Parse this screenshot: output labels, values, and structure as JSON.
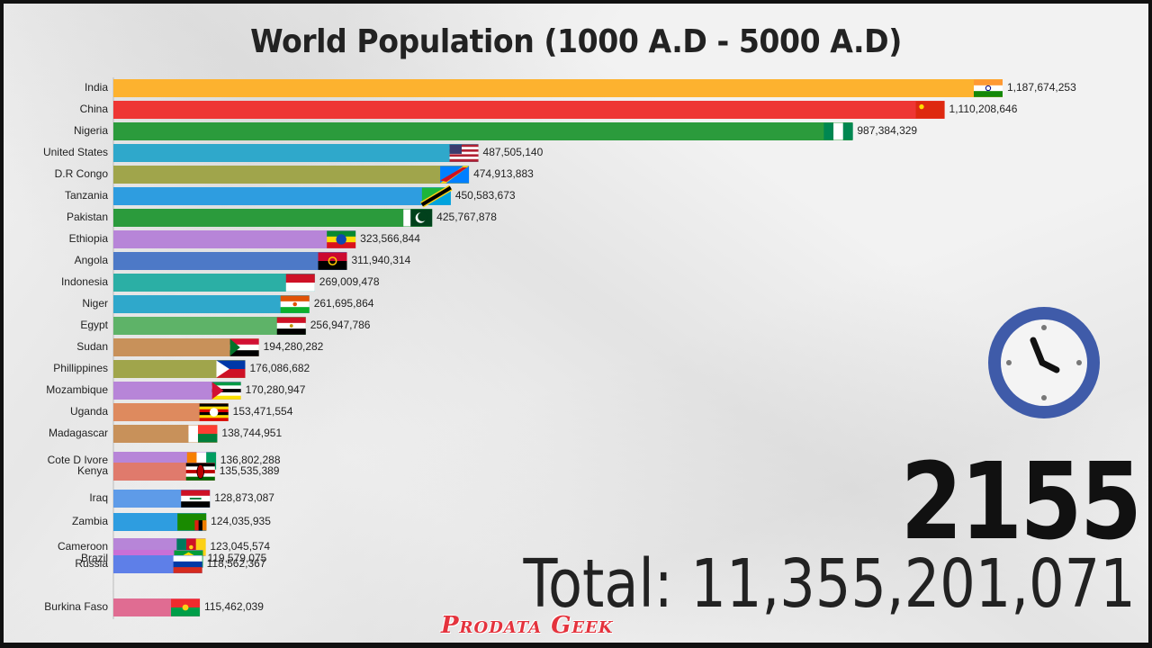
{
  "title": "World Population (1000 A.D - 5000 A.D)",
  "year": "2155",
  "total_label": "Total: ",
  "total_value": "11,355,201,071",
  "brand": "Prodata Geek",
  "chart_data": {
    "type": "bar",
    "orientation": "horizontal",
    "title": "World Population (1000 A.D - 5000 A.D)",
    "grid": false,
    "value_max": 1187674253,
    "bars": [
      {
        "name": "India",
        "value": 1187674253,
        "label": "1,187,674,253",
        "color": "#FDB22F",
        "flag": "india"
      },
      {
        "name": "China",
        "value": 1110208646,
        "label": "1,110,208,646",
        "color": "#EE3634",
        "flag": "china"
      },
      {
        "name": "Nigeria",
        "value": 987384329,
        "label": "987,384,329",
        "color": "#2B9B3C",
        "flag": "nigeria"
      },
      {
        "name": "United States",
        "value": 487505140,
        "label": "487,505,140",
        "color": "#2FA8CB",
        "flag": "usa"
      },
      {
        "name": "D.R Congo",
        "value": 474913883,
        "label": "474,913,883",
        "color": "#A0A54B",
        "flag": "drc"
      },
      {
        "name": "Tanzania",
        "value": 450583673,
        "label": "450,583,673",
        "color": "#2E9DE0",
        "flag": "tanzania"
      },
      {
        "name": "Pakistan",
        "value": 425767878,
        "label": "425,767,878",
        "color": "#2B9B3C",
        "flag": "pakistan"
      },
      {
        "name": "Ethiopia",
        "value": 323566844,
        "label": "323,566,844",
        "color": "#B785D8",
        "flag": "ethiopia"
      },
      {
        "name": "Angola",
        "value": 311940314,
        "label": "311,940,314",
        "color": "#4D79C7",
        "flag": "angola"
      },
      {
        "name": "Indonesia",
        "value": 269009478,
        "label": "269,009,478",
        "color": "#2BAFA5",
        "flag": "indonesia"
      },
      {
        "name": "Niger",
        "value": 261695864,
        "label": "261,695,864",
        "color": "#2FA8CB",
        "flag": "niger"
      },
      {
        "name": "Egypt",
        "value": 256947786,
        "label": "256,947,786",
        "color": "#5EB368",
        "flag": "egypt"
      },
      {
        "name": "Sudan",
        "value": 194280282,
        "label": "194,280,282",
        "color": "#C8915A",
        "flag": "sudan"
      },
      {
        "name": "Phillippines",
        "value": 176086682,
        "label": "176,086,682",
        "color": "#A0A54B",
        "flag": "philippines"
      },
      {
        "name": "Mozambique",
        "value": 170280947,
        "label": "170,280,947",
        "color": "#B785D8",
        "flag": "mozambique"
      },
      {
        "name": "Uganda",
        "value": 153471554,
        "label": "153,471,554",
        "color": "#DE8A5E",
        "flag": "uganda"
      },
      {
        "name": "Madagascar",
        "value": 138744951,
        "label": "138,744,951",
        "color": "#C8915A",
        "flag": "madagascar"
      },
      {
        "name": "Cote D Ivore",
        "value": 136802288,
        "label": "136,802,288",
        "color": "#B785D8",
        "flag": "ivorycoast"
      },
      {
        "name": "Kenya",
        "value": 135535389,
        "label": "135,535,389",
        "color": "#E07A6C",
        "flag": "kenya"
      },
      {
        "name": "Iraq",
        "value": 128873087,
        "label": "128,873,087",
        "color": "#5E9BE8",
        "flag": "iraq"
      },
      {
        "name": "Zambia",
        "value": 124035935,
        "label": "124,035,935",
        "color": "#2E9DE0",
        "flag": "zambia"
      },
      {
        "name": "Cameroon",
        "value": 123045574,
        "label": "123,045,574",
        "color": "#B785D8",
        "flag": "cameroon"
      },
      {
        "name": "Brazil",
        "value": 119579075,
        "label": "119,579,075",
        "color": "#C96FD6",
        "flag": "brazil"
      },
      {
        "name": "Russia",
        "value": 118562367,
        "label": "118,562,367",
        "color": "#5E7FE8",
        "flag": "russia"
      },
      {
        "name": "Burkina Faso",
        "value": 115462039,
        "label": "115,462,039",
        "color": "#E06C92",
        "flag": "burkina"
      }
    ]
  }
}
